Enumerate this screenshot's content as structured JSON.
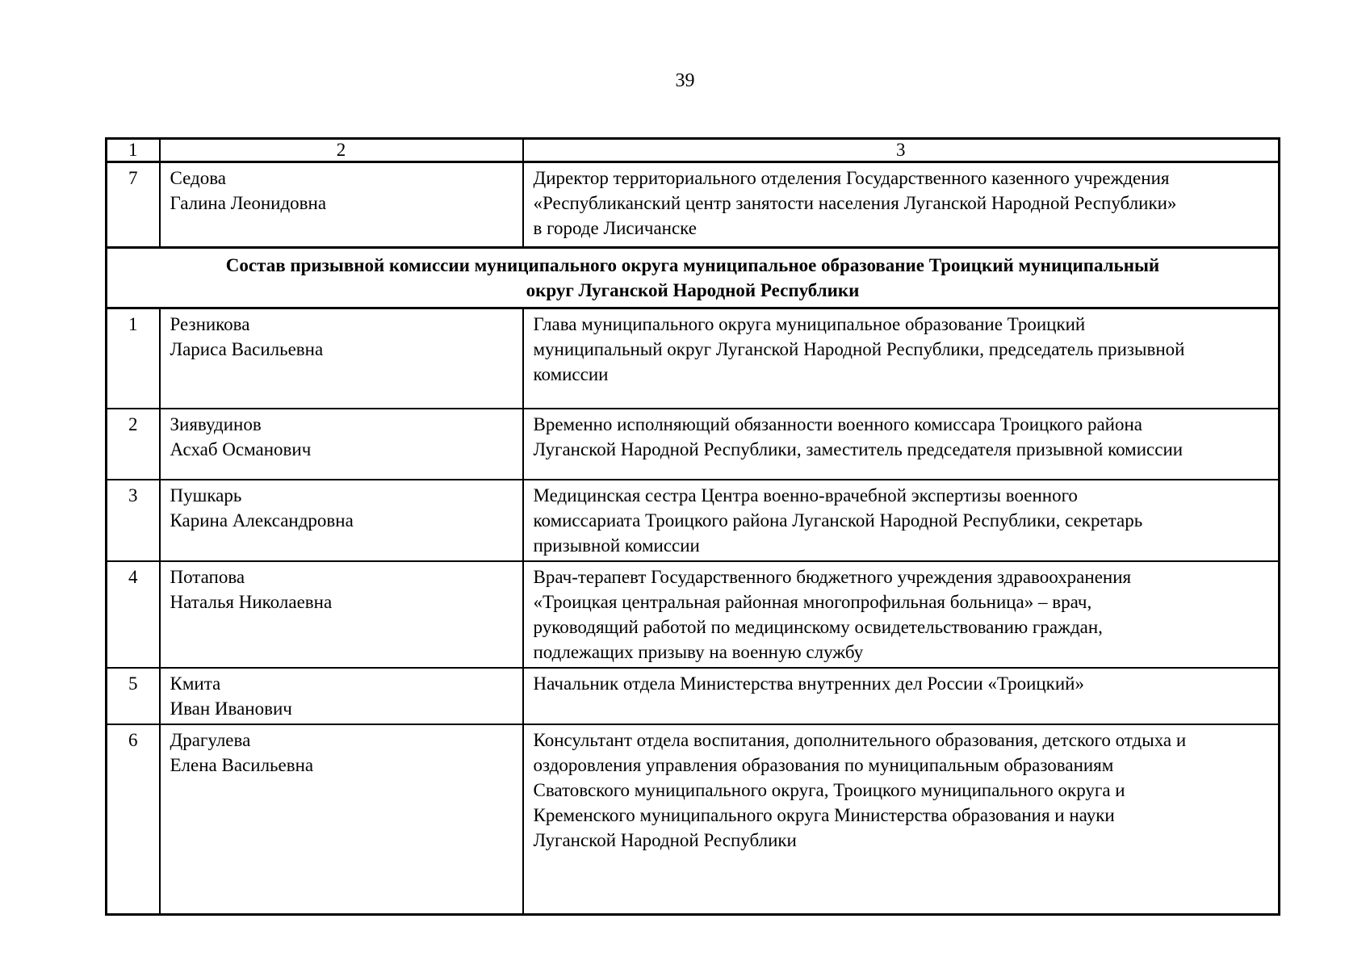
{
  "page": {
    "number": "39"
  },
  "table": {
    "column_headers": [
      "1",
      "2",
      "3"
    ],
    "section_title_lines": [
      "Состав призывной комиссии муниципального округа муниципальное образование Троицкий муниципальный",
      "округ Луганской Народной Республики"
    ],
    "rows": [
      {
        "num": "7",
        "surname": "Седова",
        "given_name": "Галина Леонидовна",
        "position": "Директор территориального отделения Государственного казенного учреждения «Республиканский центр занятости населения Луганской Народной Республики» в городе Лисичанске"
      },
      {
        "num": "1",
        "surname": "Резникова",
        "given_name": "Лариса Васильевна",
        "position": "Глава муниципального округа муниципальное образование Троицкий муниципальный округ Луганской Народной Республики, председатель призывной комиссии"
      },
      {
        "num": "2",
        "surname": "Зиявудинов",
        "given_name": "Асхаб Османович",
        "position": "Временно исполняющий обязанности военного комиссара Троицкого района Луганской Народной Республики, заместитель председателя призывной комиссии"
      },
      {
        "num": "3",
        "surname": "Пушкарь",
        "given_name": "Карина Александровна",
        "position": "Медицинская сестра Центра военно-врачебной экспертизы военного комиссариата Троицкого района Луганской Народной Республики, секретарь призывной комиссии"
      },
      {
        "num": "4",
        "surname": "Потапова",
        "given_name": "Наталья Николаевна",
        "position": "Врач-терапевт Государственного бюджетного учреждения здравоохранения «Троицкая центральная районная многопрофильная больница» – врач, руководящий работой по медицинскому освидетельствованию граждан, подлежащих призыву на военную службу"
      },
      {
        "num": "5",
        "surname": "Кмита",
        "given_name": "Иван Иванович",
        "position": "Начальник отдела Министерства внутренних дел России «Троицкий»"
      },
      {
        "num": "6",
        "surname": "Драгулева",
        "given_name": "Елена Васильевна",
        "position": "Консультант отдела воспитания, дополнительного образования, детского отдыха и оздоровления управления образования по муниципальным образованиям Сватовского муниципального округа, Троицкого муниципального округа и Кременского муниципального округа Министерства образования и науки Луганской Народной Республики"
      }
    ]
  }
}
